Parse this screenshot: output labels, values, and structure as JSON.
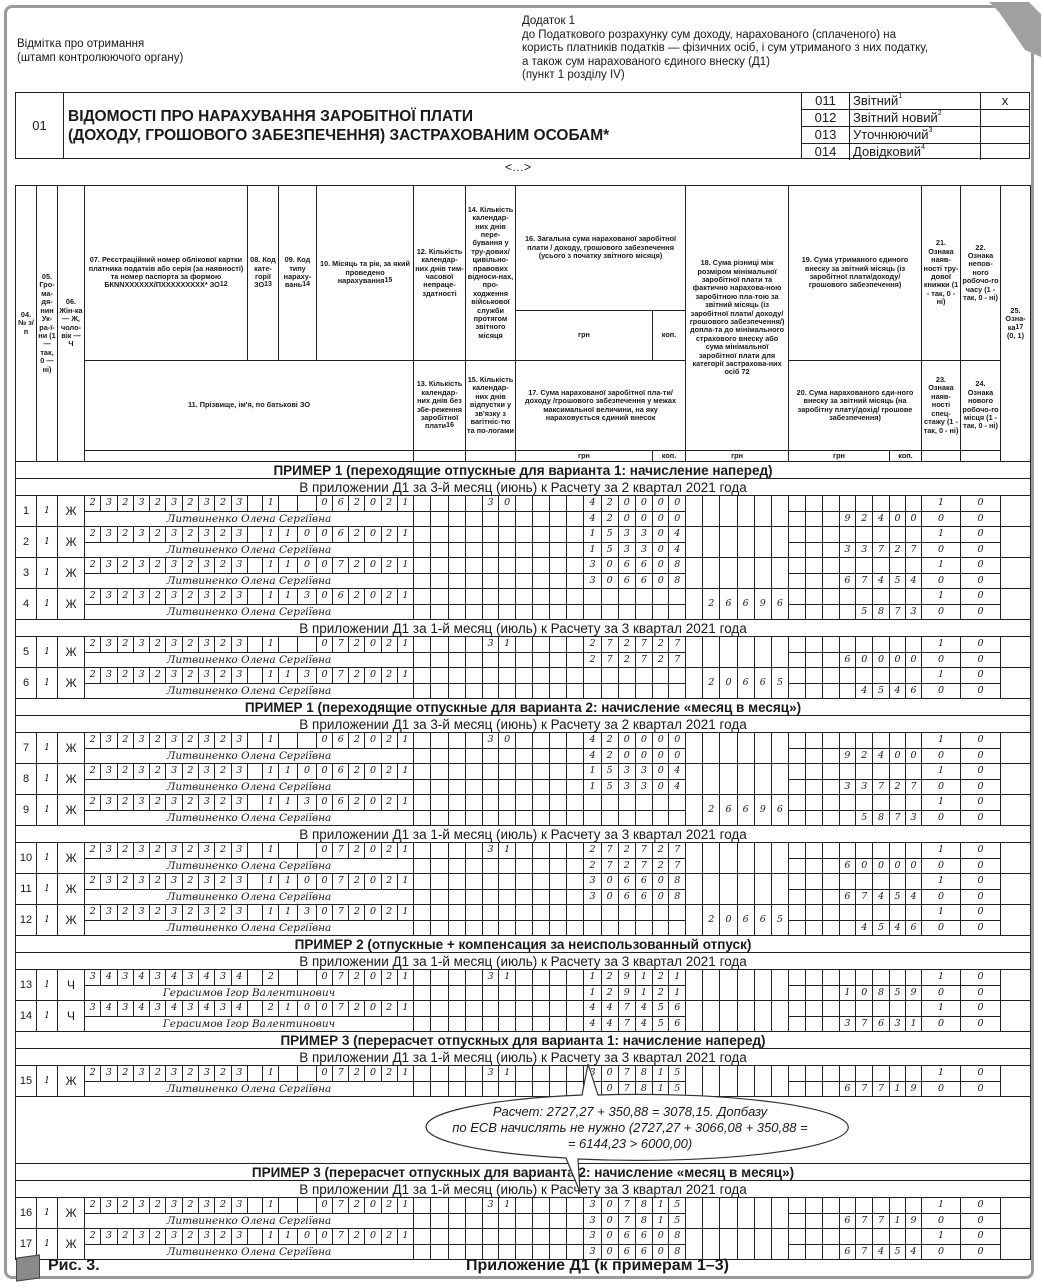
{
  "stamp": {
    "line1": "Відмітка про отримання",
    "line2": "(штамп контролюючого органу)"
  },
  "annex": {
    "title": "Додаток 1",
    "line1": "до Податкового розрахунку сум доходу, нарахованого (сплаченого) на",
    "line2": "користь платників податків — фізичних осіб, і сум утриманого з них податку,",
    "line3": "а також сум нарахованого єдиного внеску (Д1)",
    "line4": "(пункт 1 розділу IV)"
  },
  "form": {
    "code": "01",
    "title_line1": "ВІДОМОСТІ ПРО НАРАХУВАННЯ ЗАРОБІТНОЇ ПЛАТИ",
    "title_line2": "(ДОХОДУ, ГРОШОВОГО ЗАБЕЗПЕЧЕННЯ) ЗАСТРАХОВАНИМ ОСОБАМ*",
    "types": [
      {
        "code": "011",
        "label": "Звітний",
        "sup": "1",
        "mark": "x"
      },
      {
        "code": "012",
        "label": "Звітний новий",
        "sup": "2",
        "mark": ""
      },
      {
        "code": "013",
        "label": "Уточнюючий",
        "sup": "3",
        "mark": ""
      },
      {
        "code": "014",
        "label": "Довідковий",
        "sup": "4",
        "mark": ""
      }
    ]
  },
  "ellipsis": "<…>",
  "columns": {
    "c04": {
      "label": "04. № з/п"
    },
    "c05": {
      "label": "05. Гро-ма-дя-нин Ук-ра-ї-ни (1 — так, 0 — ні)"
    },
    "c06": {
      "label": "06. Жін-ка — Ж, чоло-вік — Ч"
    },
    "c07": {
      "label": "07. Реєстраційний номер облікової картки платника податків або серія (за наявності) та номер паспорта за формою БКNNXXXXXX/ПXXXXXXXXX* ЗО",
      "sup": "12"
    },
    "c08": {
      "label": "08. Код кате-горії ЗО",
      "sup": "13"
    },
    "c09": {
      "label": "09. Код типу нараху-вань",
      "sup": "14"
    },
    "c10": {
      "label": "10. Місяць та рік, за який проведено нарахування",
      "sup": "15"
    },
    "c11": {
      "label": "11. Прізвище, ім'я, по батькові ЗО"
    },
    "c12": {
      "label": "12. Кількість календар-них днів тим-часової непраце-здатності"
    },
    "c13": {
      "label": "13. Кількість календар-них днів без збе-реження заробітної плати",
      "sup": "16"
    },
    "c14": {
      "label": "14. Кількість календар-них днів пере-бування у тру-дових/ цивільно-правових відноси-нах, про-ходження військової служби протягом звітного місяця"
    },
    "c15": {
      "label": "15. Кількість календар-них днів відпустки у зв'язку з вагітніс-тю та по-логами"
    },
    "c16": {
      "label": "16. Загальна сума нарахованої заробітної плати / доходу, грошового забезпечення (усього з початку звітного місяця)"
    },
    "c17": {
      "label": "17. Сума нарахованої заробітної пла-ти/ доходу /грошового забезпечення у межах максимальної величини, на яку нараховується єдиний внесок"
    },
    "c18": {
      "label": "18. Сума різниці між розміром мінімальної заробітної плати та фактично нарахова-ною заробітною пла-тою за звітний місяць (із заробітної плати/ доходу/ грошового забезпечення/) допла-та до мінімального страхового внеску або сума мінімальної заробітної плати для категорії застрахова-них осіб 72"
    },
    "c19": {
      "label": "19. Сума утриманого єдиного внеску за звітний місяць (із заробітної плати/доходу/ грошового забезпечення)"
    },
    "c20": {
      "label": "20. Сума нарахованого єди-ного внеску за звітний місяць (на заробітну плату/дохід/ грошове забезпечення)"
    },
    "c21": {
      "label": "21. Ознака наяв-ності тру-дової книжки (1 - так, 0 - ні)"
    },
    "c22": {
      "label": "22. Ознака непов-ного робочо-го часу (1 - так, 0 - ні)"
    },
    "c23": {
      "label": "23. Ознака наяв-ності спец-стажу (1 - так, 0 - ні)"
    },
    "c24": {
      "label": "24. Ознака нового робочо-го місця (1 - так, 0 - ні)"
    },
    "c25": {
      "label": "25. Озна-ка",
      "sup": "17",
      "tail": "(0, 1)"
    }
  },
  "units": {
    "grn": "грн",
    "kop": "коп."
  },
  "body": [
    {
      "type": "title",
      "text": "ПРИМЕР 1 (переходящие отпускные для варианта 1: начисление наперед)"
    },
    {
      "type": "sub",
      "text": "В приложении Д1 за 3-й месяц (июнь) к Расчету за 2 квартал 2021 года"
    },
    {
      "type": "record",
      "num": "1",
      "c05": "1",
      "c06": "Ж",
      "c07": "2323232323",
      "c08": "1",
      "c09": "",
      "c10": "062021",
      "c14": "30",
      "c16": "420000",
      "c17": "420000",
      "c18": "",
      "c19": "",
      "c20": "92400",
      "c21": "1",
      "c22": "0",
      "c23": "0",
      "c24": "0",
      "name": "Литвиненко Олена Сергіївна"
    },
    {
      "type": "record",
      "num": "2",
      "c05": "1",
      "c06": "Ж",
      "c07": "2323232323",
      "c08": "1",
      "c09": "10",
      "c10": "062021",
      "c14": "",
      "c16": "153304",
      "c17": "153304",
      "c18": "",
      "c19": "",
      "c20": "33727",
      "c21": "1",
      "c22": "0",
      "c23": "0",
      "c24": "0",
      "name": "Литвиненко Олена Сергіївна"
    },
    {
      "type": "record",
      "num": "3",
      "c05": "1",
      "c06": "Ж",
      "c07": "2323232323",
      "c08": "1",
      "c09": "10",
      "c10": "072021",
      "c14": "",
      "c16": "306608",
      "c17": "306608",
      "c18": "",
      "c19": "",
      "c20": "67454",
      "c21": "1",
      "c22": "0",
      "c23": "0",
      "c24": "0",
      "name": "Литвиненко Олена Сергіївна"
    },
    {
      "type": "record",
      "num": "4",
      "c05": "1",
      "c06": "Ж",
      "c07": "2323232323",
      "c08": "1",
      "c09": "13",
      "c10": "062021",
      "c14": "",
      "c16": "",
      "c17": "",
      "c18": "26696",
      "c19": "",
      "c20": "5873",
      "c21": "1",
      "c22": "0",
      "c23": "0",
      "c24": "0",
      "name": "Литвиненко Олена Сергіївна"
    },
    {
      "type": "sub",
      "text": "В приложении Д1 за 1-й месяц (июль) к Расчету за 3 квартал 2021 года"
    },
    {
      "type": "record",
      "num": "5",
      "c05": "1",
      "c06": "Ж",
      "c07": "2323232323",
      "c08": "1",
      "c09": "",
      "c10": "072021",
      "c14": "31",
      "c16": "272727",
      "c17": "272727",
      "c18": "",
      "c19": "",
      "c20": "60000",
      "c21": "1",
      "c22": "0",
      "c23": "0",
      "c24": "0",
      "name": "Литвиненко Олена Сергіївна"
    },
    {
      "type": "record",
      "num": "6",
      "c05": "1",
      "c06": "Ж",
      "c07": "2323232323",
      "c08": "1",
      "c09": "13",
      "c10": "072021",
      "c14": "",
      "c16": "",
      "c17": "",
      "c18": "20665",
      "c19": "",
      "c20": "4546",
      "c21": "1",
      "c22": "0",
      "c23": "0",
      "c24": "0",
      "name": "Литвиненко Олена Сергіївна"
    },
    {
      "type": "title",
      "text": "ПРИМЕР 1 (переходящие отпускные для варианта 2: начисление «месяц в месяц»)"
    },
    {
      "type": "sub",
      "text": "В приложении Д1 за 3-й месяц (июнь) к Расчету за 2 квартал 2021 года"
    },
    {
      "type": "record",
      "num": "7",
      "c05": "1",
      "c06": "Ж",
      "c07": "2323232323",
      "c08": "1",
      "c09": "",
      "c10": "062021",
      "c14": "30",
      "c16": "420000",
      "c17": "420000",
      "c18": "",
      "c19": "",
      "c20": "92400",
      "c21": "1",
      "c22": "0",
      "c23": "0",
      "c24": "0",
      "name": "Литвиненко Олена Сергіївна"
    },
    {
      "type": "record",
      "num": "8",
      "c05": "1",
      "c06": "Ж",
      "c07": "2323232323",
      "c08": "1",
      "c09": "10",
      "c10": "062021",
      "c14": "",
      "c16": "153304",
      "c17": "153304",
      "c18": "",
      "c19": "",
      "c20": "33727",
      "c21": "1",
      "c22": "0",
      "c23": "0",
      "c24": "0",
      "name": "Литвиненко Олена Сергіївна"
    },
    {
      "type": "record",
      "num": "9",
      "c05": "1",
      "c06": "Ж",
      "c07": "2323232323",
      "c08": "1",
      "c09": "13",
      "c10": "062021",
      "c14": "",
      "c16": "",
      "c17": "",
      "c18": "26696",
      "c19": "",
      "c20": "5873",
      "c21": "1",
      "c22": "0",
      "c23": "0",
      "c24": "0",
      "name": "Литвиненко Олена Сергіївна"
    },
    {
      "type": "sub",
      "text": "В приложении Д1 за 1-й месяц (июль) к Расчету за 3 квартал 2021 года"
    },
    {
      "type": "record",
      "num": "10",
      "c05": "1",
      "c06": "Ж",
      "c07": "2323232323",
      "c08": "1",
      "c09": "",
      "c10": "072021",
      "c14": "31",
      "c16": "272727",
      "c17": "272727",
      "c18": "",
      "c19": "",
      "c20": "60000",
      "c21": "1",
      "c22": "0",
      "c23": "0",
      "c24": "0",
      "name": "Литвиненко Олена Сергіївна"
    },
    {
      "type": "record",
      "num": "11",
      "c05": "1",
      "c06": "Ж",
      "c07": "2323232323",
      "c08": "1",
      "c09": "10",
      "c10": "072021",
      "c14": "",
      "c16": "306608",
      "c17": "306608",
      "c18": "",
      "c19": "",
      "c20": "67454",
      "c21": "1",
      "c22": "0",
      "c23": "0",
      "c24": "0",
      "name": "Литвиненко Олена Сергіївна"
    },
    {
      "type": "record",
      "num": "12",
      "c05": "1",
      "c06": "Ж",
      "c07": "2323232323",
      "c08": "1",
      "c09": "13",
      "c10": "072021",
      "c14": "",
      "c16": "",
      "c17": "",
      "c18": "20665",
      "c19": "",
      "c20": "4546",
      "c21": "1",
      "c22": "0",
      "c23": "0",
      "c24": "0",
      "name": "Литвиненко Олена Сергіївна"
    },
    {
      "type": "title",
      "text": "ПРИМЕР 2 (отпускные + компенсация за неиспользованный отпуск)"
    },
    {
      "type": "sub",
      "text": "В приложении Д1 за 1-й месяц (июль) к Расчету за 3 квартал 2021 года"
    },
    {
      "type": "record",
      "num": "13",
      "c05": "1",
      "c06": "Ч",
      "c07": "3434343434",
      "c08": "2",
      "c09": "",
      "c10": "072021",
      "c14": "31",
      "c16": "129121",
      "c17": "129121",
      "c18": "",
      "c19": "",
      "c20": "10859",
      "c21": "1",
      "c22": "0",
      "c23": "0",
      "c24": "0",
      "name": "Герасимов Ігор Валентинович"
    },
    {
      "type": "record",
      "num": "14",
      "c05": "1",
      "c06": "Ч",
      "c07": "3434343434",
      "c08": "2",
      "c09": "10",
      "c10": "072021",
      "c14": "",
      "c16": "447456",
      "c17": "447456",
      "c18": "",
      "c19": "",
      "c20": "37631",
      "c21": "1",
      "c22": "0",
      "c23": "0",
      "c24": "0",
      "name": "Герасимов Ігор Валентинович"
    },
    {
      "type": "title",
      "text": "ПРИМЕР 3 (перерасчет отпускных для варианта 1: начисление наперед)"
    },
    {
      "type": "sub",
      "text": "В приложении Д1 за 1-й месяц (июль) к Расчету за 3 квартал 2021 года"
    },
    {
      "type": "record",
      "num": "15",
      "c05": "1",
      "c06": "Ж",
      "c07": "2323232323",
      "c08": "1",
      "c09": "",
      "c10": "072021",
      "c14": "31",
      "c16": "307815",
      "c17": "307815",
      "c18": "",
      "c19": "",
      "c20": "67719",
      "c21": "1",
      "c22": "0",
      "c23": "0",
      "c24": "0",
      "name": "Литвиненко Олена Сергіївна"
    },
    {
      "type": "gap"
    },
    {
      "type": "title",
      "text": "ПРИМЕР 3 (перерасчет отпускных для варианта 2: начисление «месяц в месяц»)"
    },
    {
      "type": "sub",
      "text": "В приложении Д1 за 1-й месяц (июль) к Расчету за 3 квартал 2021 года"
    },
    {
      "type": "record",
      "num": "16",
      "c05": "1",
      "c06": "Ж",
      "c07": "2323232323",
      "c08": "1",
      "c09": "",
      "c10": "072021",
      "c14": "31",
      "c16": "307815",
      "c17": "307815",
      "c18": "",
      "c19": "",
      "c20": "67719",
      "c21": "1",
      "c22": "0",
      "c23": "0",
      "c24": "0",
      "name": "Литвиненко Олена Сергіївна"
    },
    {
      "type": "record",
      "num": "17",
      "c05": "1",
      "c06": "Ж",
      "c07": "2323232323",
      "c08": "1",
      "c09": "10",
      "c10": "072021",
      "c14": "",
      "c16": "306608",
      "c17": "306608",
      "c18": "",
      "c19": "",
      "c20": "67454",
      "c21": "1",
      "c22": "0",
      "c23": "0",
      "c24": "0",
      "name": "Литвиненко Олена Сергіївна"
    }
  ],
  "callout": {
    "line1": "Расчет: 2727,27 + 350,88 = 3078,15. Допбазу",
    "line2": "по ЕСВ начислять не нужно (2727,27 + 3066,08 + 350,88 =",
    "line3": "= 6144,23 > 6000,00)"
  },
  "footer": {
    "figure": "Рис. 3.",
    "caption": "Приложение Д1 (к примерам 1–3)"
  }
}
